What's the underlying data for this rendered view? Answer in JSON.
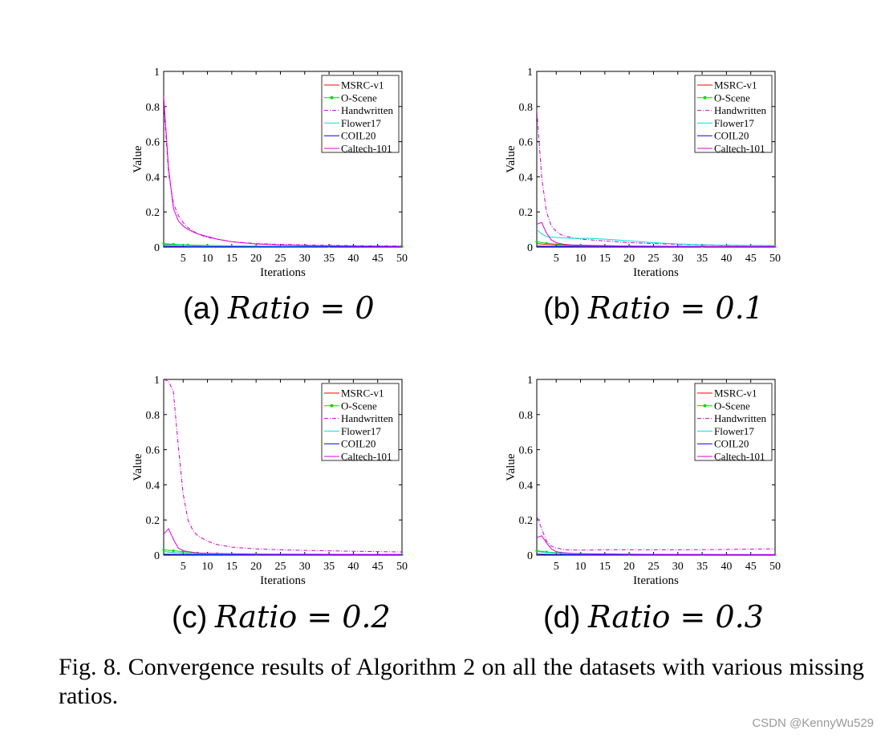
{
  "figure_caption": "Fig. 8.  Convergence results of Algorithm 2 on all the datasets with various missing ratios.",
  "watermark": "CSDN @KennyWu529",
  "colors": {
    "MSRC-v1": "#ff0000",
    "O-Scene": "#00dd00",
    "Handwritten": "#cc00cc",
    "Flower17": "#00dddd",
    "COIL20": "#0000ff",
    "Caltech-101": "#dd00dd"
  },
  "chart_data": [
    {
      "type": "line",
      "subcaption_label": "(a)",
      "subcaption_eq": "Ratio = 0",
      "xlabel": "Iterations",
      "ylabel": "Value",
      "xlim": [
        1,
        50
      ],
      "ylim": [
        0,
        1
      ],
      "xticks": [
        "5",
        "10",
        "15",
        "20",
        "25",
        "30",
        "35",
        "40",
        "45",
        "50"
      ],
      "yticks": [
        "0",
        "0.2",
        "0.4",
        "0.6",
        "0.8",
        "1"
      ],
      "legend_position": "top-right",
      "grid": false,
      "series": [
        {
          "name": "MSRC-v1",
          "x": [
            1,
            3,
            6,
            10,
            20,
            35,
            50
          ],
          "y": [
            0.012,
            0.01,
            0.008,
            0.006,
            0.004,
            0.003,
            0.002
          ]
        },
        {
          "name": "O-Scene",
          "x": [
            1,
            3,
            6,
            10,
            20,
            35,
            50
          ],
          "y": [
            0.02,
            0.016,
            0.012,
            0.009,
            0.006,
            0.004,
            0.003
          ]
        },
        {
          "name": "Handwritten",
          "x": [
            1,
            2,
            3,
            4,
            5,
            6,
            8,
            10,
            12,
            15,
            20,
            25,
            30,
            40,
            50
          ],
          "y": [
            0.82,
            0.42,
            0.25,
            0.18,
            0.14,
            0.11,
            0.075,
            0.055,
            0.045,
            0.03,
            0.02,
            0.015,
            0.012,
            0.008,
            0.006
          ]
        },
        {
          "name": "Flower17",
          "x": [
            1,
            3,
            6,
            10,
            20,
            35,
            50
          ],
          "y": [
            0.015,
            0.012,
            0.009,
            0.007,
            0.005,
            0.003,
            0.002
          ]
        },
        {
          "name": "COIL20",
          "x": [
            1,
            3,
            6,
            10,
            20,
            35,
            50
          ],
          "y": [
            0.004,
            0.003,
            0.002,
            0.002,
            0.001,
            0.001,
            0.001
          ]
        },
        {
          "name": "Caltech-101",
          "x": [
            1,
            2,
            3,
            4,
            5,
            6,
            8,
            10,
            12,
            15,
            20,
            25,
            30,
            40,
            50
          ],
          "y": [
            0.86,
            0.45,
            0.22,
            0.15,
            0.12,
            0.1,
            0.075,
            0.06,
            0.045,
            0.03,
            0.018,
            0.012,
            0.009,
            0.006,
            0.004
          ]
        }
      ]
    },
    {
      "type": "line",
      "subcaption_label": "(b)",
      "subcaption_eq": "Ratio = 0.1",
      "xlabel": "Iterations",
      "ylabel": "Value",
      "xlim": [
        1,
        50
      ],
      "ylim": [
        0,
        1
      ],
      "xticks": [
        "5",
        "10",
        "15",
        "20",
        "25",
        "30",
        "35",
        "40",
        "45",
        "50"
      ],
      "yticks": [
        "0",
        "0.2",
        "0.4",
        "0.6",
        "0.8",
        "1"
      ],
      "legend_position": "top-right",
      "grid": false,
      "series": [
        {
          "name": "MSRC-v1",
          "x": [
            1,
            3,
            6,
            10,
            20,
            35,
            50
          ],
          "y": [
            0.02,
            0.015,
            0.01,
            0.007,
            0.004,
            0.003,
            0.002
          ]
        },
        {
          "name": "O-Scene",
          "x": [
            1,
            3,
            6,
            10,
            20,
            35,
            50
          ],
          "y": [
            0.03,
            0.022,
            0.015,
            0.01,
            0.006,
            0.004,
            0.003
          ]
        },
        {
          "name": "Handwritten",
          "x": [
            1,
            2,
            3,
            4,
            5,
            6,
            8,
            10,
            15,
            20,
            30,
            40,
            50
          ],
          "y": [
            0.78,
            0.4,
            0.2,
            0.12,
            0.09,
            0.07,
            0.055,
            0.045,
            0.035,
            0.025,
            0.015,
            0.01,
            0.008
          ]
        },
        {
          "name": "Flower17",
          "x": [
            1,
            2,
            3,
            5,
            8,
            12,
            15,
            20,
            25,
            30,
            40,
            50
          ],
          "y": [
            0.1,
            0.075,
            0.06,
            0.055,
            0.05,
            0.05,
            0.045,
            0.035,
            0.025,
            0.018,
            0.01,
            0.008
          ]
        },
        {
          "name": "COIL20",
          "x": [
            1,
            3,
            6,
            10,
            20,
            35,
            50
          ],
          "y": [
            0.006,
            0.004,
            0.003,
            0.002,
            0.001,
            0.001,
            0.001
          ]
        },
        {
          "name": "Caltech-101",
          "x": [
            1,
            2,
            3,
            4,
            5,
            6,
            8,
            10,
            20,
            30,
            40,
            50
          ],
          "y": [
            0.13,
            0.14,
            0.08,
            0.04,
            0.025,
            0.018,
            0.012,
            0.01,
            0.006,
            0.004,
            0.003,
            0.003
          ]
        }
      ]
    },
    {
      "type": "line",
      "subcaption_label": "(c)",
      "subcaption_eq": "Ratio = 0.2",
      "xlabel": "Iterations",
      "ylabel": "Value",
      "xlim": [
        1,
        50
      ],
      "ylim": [
        0,
        1
      ],
      "xticks": [
        "5",
        "10",
        "15",
        "20",
        "25",
        "30",
        "35",
        "40",
        "45",
        "50"
      ],
      "yticks": [
        "0",
        "0.2",
        "0.4",
        "0.6",
        "0.8",
        "1"
      ],
      "legend_position": "top-right",
      "grid": false,
      "series": [
        {
          "name": "MSRC-v1",
          "x": [
            1,
            3,
            6,
            10,
            20,
            35,
            50
          ],
          "y": [
            0.02,
            0.015,
            0.01,
            0.007,
            0.004,
            0.003,
            0.002
          ]
        },
        {
          "name": "O-Scene",
          "x": [
            1,
            3,
            5,
            8,
            12,
            20,
            35,
            50
          ],
          "y": [
            0.03,
            0.025,
            0.02,
            0.012,
            0.008,
            0.005,
            0.003,
            0.002
          ]
        },
        {
          "name": "Handwritten",
          "x": [
            1,
            2,
            3,
            4,
            5,
            6,
            7,
            8,
            10,
            12,
            15,
            20,
            25,
            30,
            40,
            50
          ],
          "y": [
            1.0,
            0.99,
            0.93,
            0.62,
            0.35,
            0.2,
            0.14,
            0.11,
            0.08,
            0.06,
            0.045,
            0.035,
            0.03,
            0.027,
            0.022,
            0.018
          ]
        },
        {
          "name": "Flower17",
          "x": [
            1,
            3,
            6,
            10,
            20,
            35,
            50
          ],
          "y": [
            0.02,
            0.015,
            0.01,
            0.006,
            0.004,
            0.003,
            0.002
          ]
        },
        {
          "name": "COIL20",
          "x": [
            1,
            3,
            6,
            10,
            20,
            35,
            50
          ],
          "y": [
            0.005,
            0.004,
            0.003,
            0.002,
            0.001,
            0.001,
            0.001
          ]
        },
        {
          "name": "Caltech-101",
          "x": [
            1,
            2,
            3,
            4,
            5,
            6,
            8,
            10,
            20,
            30,
            40,
            50
          ],
          "y": [
            0.12,
            0.15,
            0.09,
            0.04,
            0.025,
            0.02,
            0.012,
            0.01,
            0.006,
            0.005,
            0.004,
            0.004
          ]
        }
      ]
    },
    {
      "type": "line",
      "subcaption_label": "(d)",
      "subcaption_eq": "Ratio = 0.3",
      "xlabel": "Iterations",
      "ylabel": "Value",
      "xlim": [
        1,
        50
      ],
      "ylim": [
        0,
        1
      ],
      "xticks": [
        "5",
        "10",
        "15",
        "20",
        "25",
        "30",
        "35",
        "40",
        "45",
        "50"
      ],
      "yticks": [
        "0",
        "0.2",
        "0.4",
        "0.6",
        "0.8",
        "1"
      ],
      "legend_position": "top-right",
      "grid": false,
      "series": [
        {
          "name": "MSRC-v1",
          "x": [
            1,
            3,
            6,
            10,
            20,
            35,
            50
          ],
          "y": [
            0.02,
            0.015,
            0.01,
            0.007,
            0.004,
            0.003,
            0.002
          ]
        },
        {
          "name": "O-Scene",
          "x": [
            1,
            3,
            6,
            10,
            20,
            35,
            50
          ],
          "y": [
            0.025,
            0.018,
            0.012,
            0.008,
            0.005,
            0.003,
            0.002
          ]
        },
        {
          "name": "Handwritten",
          "x": [
            1,
            2,
            3,
            4,
            5,
            7,
            10,
            15,
            20,
            30,
            40,
            50
          ],
          "y": [
            0.22,
            0.15,
            0.08,
            0.05,
            0.04,
            0.03,
            0.028,
            0.03,
            0.03,
            0.03,
            0.032,
            0.036
          ]
        },
        {
          "name": "Flower17",
          "x": [
            1,
            3,
            6,
            10,
            20,
            35,
            50
          ],
          "y": [
            0.02,
            0.015,
            0.01,
            0.007,
            0.004,
            0.003,
            0.002
          ]
        },
        {
          "name": "COIL20",
          "x": [
            1,
            3,
            6,
            10,
            20,
            35,
            50
          ],
          "y": [
            0.006,
            0.004,
            0.003,
            0.002,
            0.001,
            0.001,
            0.001
          ]
        },
        {
          "name": "Caltech-101",
          "x": [
            1,
            2,
            3,
            4,
            5,
            6,
            8,
            10,
            20,
            30,
            40,
            50
          ],
          "y": [
            0.1,
            0.11,
            0.07,
            0.035,
            0.02,
            0.015,
            0.01,
            0.008,
            0.005,
            0.004,
            0.003,
            0.003
          ]
        }
      ]
    }
  ]
}
